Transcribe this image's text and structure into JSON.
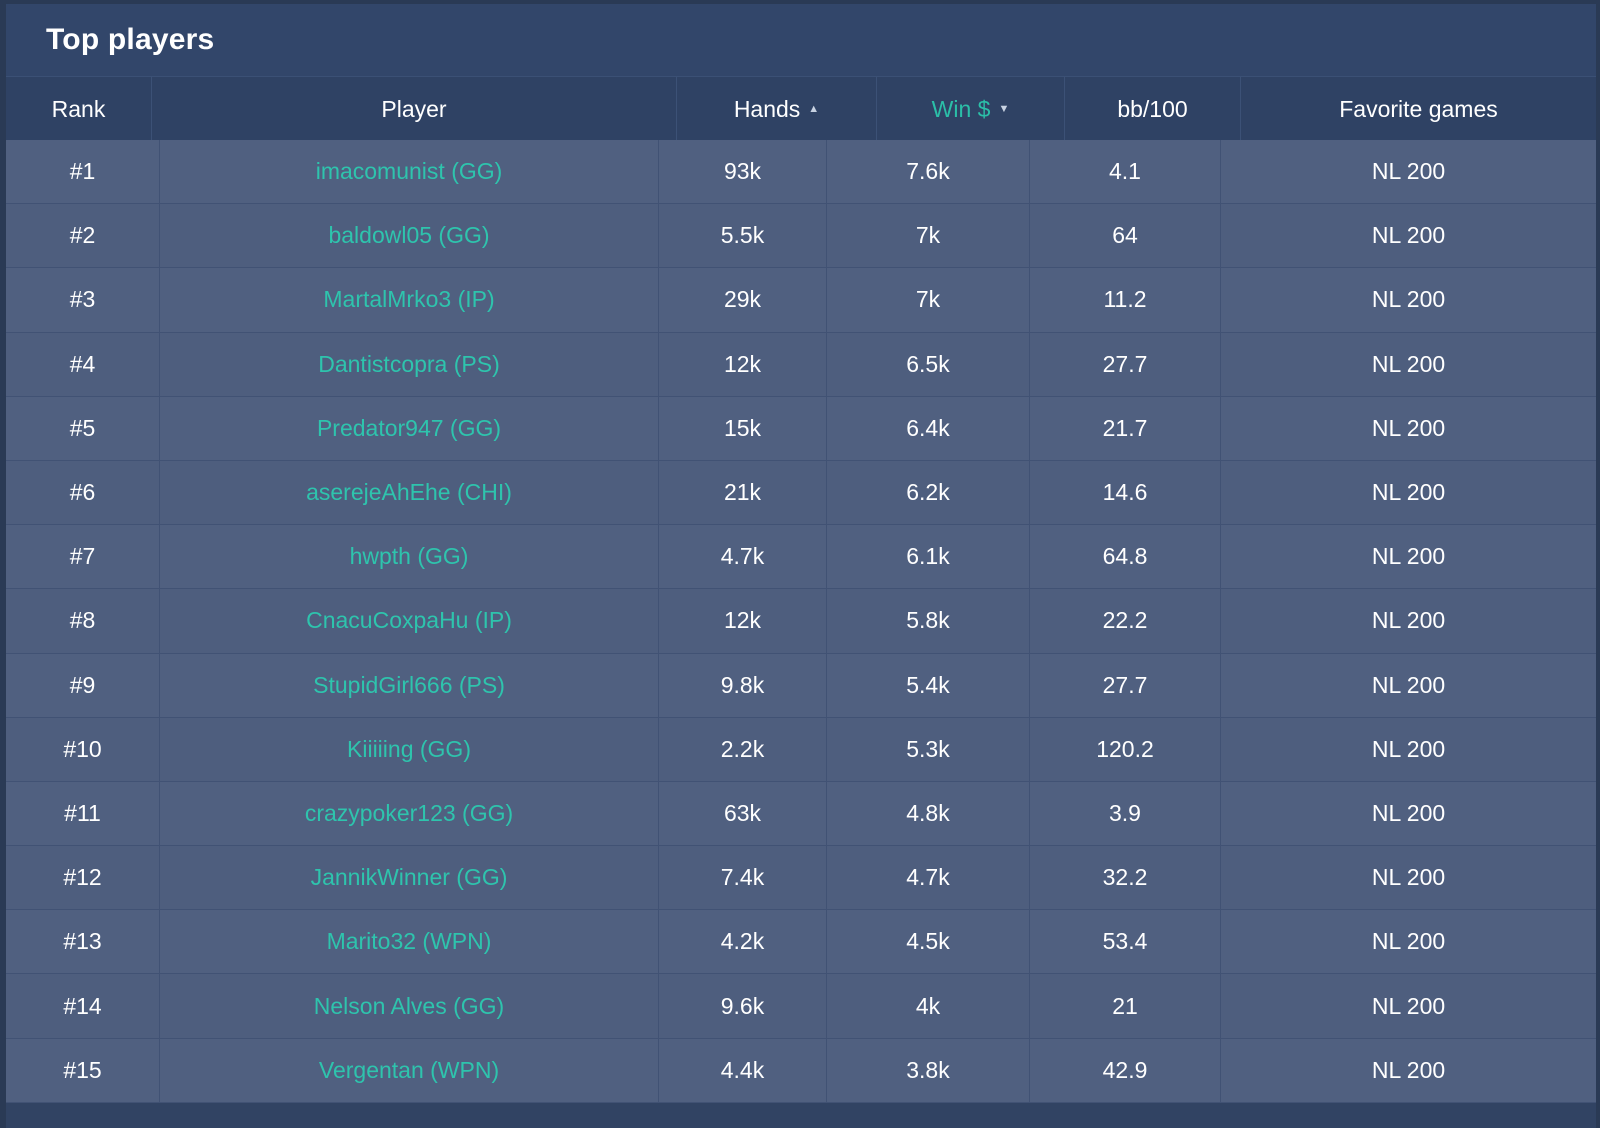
{
  "title": "Top players",
  "columns": {
    "rank": "Rank",
    "player": "Player",
    "hands": "Hands",
    "win": "Win $",
    "bb100": "bb/100",
    "favorite": "Favorite games"
  },
  "sort": {
    "hands_icon": "▲",
    "win_icon": "▼",
    "active_column": "win",
    "active_color": "#2bbfa8"
  },
  "colors": {
    "player_link": "#2ec4ad",
    "panel": "#314363",
    "row": "#506080"
  },
  "rows": [
    {
      "rank": "#1",
      "player": "imacomunist (GG)",
      "hands": "93k",
      "win": "7.6k",
      "bb100": "4.1",
      "favorite": "NL 200"
    },
    {
      "rank": "#2",
      "player": "baldowl05 (GG)",
      "hands": "5.5k",
      "win": "7k",
      "bb100": "64",
      "favorite": "NL 200"
    },
    {
      "rank": "#3",
      "player": "MartalMrko3 (IP)",
      "hands": "29k",
      "win": "7k",
      "bb100": "11.2",
      "favorite": "NL 200"
    },
    {
      "rank": "#4",
      "player": "Dantistcopra (PS)",
      "hands": "12k",
      "win": "6.5k",
      "bb100": "27.7",
      "favorite": "NL 200"
    },
    {
      "rank": "#5",
      "player": "Predator947 (GG)",
      "hands": "15k",
      "win": "6.4k",
      "bb100": "21.7",
      "favorite": "NL 200"
    },
    {
      "rank": "#6",
      "player": "aserejeAhEhe (CHI)",
      "hands": "21k",
      "win": "6.2k",
      "bb100": "14.6",
      "favorite": "NL 200"
    },
    {
      "rank": "#7",
      "player": "hwpth (GG)",
      "hands": "4.7k",
      "win": "6.1k",
      "bb100": "64.8",
      "favorite": "NL 200"
    },
    {
      "rank": "#8",
      "player": "CnacuCoxpaHu (IP)",
      "hands": "12k",
      "win": "5.8k",
      "bb100": "22.2",
      "favorite": "NL 200"
    },
    {
      "rank": "#9",
      "player": "StupidGirl666 (PS)",
      "hands": "9.8k",
      "win": "5.4k",
      "bb100": "27.7",
      "favorite": "NL 200"
    },
    {
      "rank": "#10",
      "player": "Kiiiiing (GG)",
      "hands": "2.2k",
      "win": "5.3k",
      "bb100": "120.2",
      "favorite": "NL 200"
    },
    {
      "rank": "#11",
      "player": "crazypoker123 (GG)",
      "hands": "63k",
      "win": "4.8k",
      "bb100": "3.9",
      "favorite": "NL 200"
    },
    {
      "rank": "#12",
      "player": "JannikWinner (GG)",
      "hands": "7.4k",
      "win": "4.7k",
      "bb100": "32.2",
      "favorite": "NL 200"
    },
    {
      "rank": "#13",
      "player": "Marito32 (WPN)",
      "hands": "4.2k",
      "win": "4.5k",
      "bb100": "53.4",
      "favorite": "NL 200"
    },
    {
      "rank": "#14",
      "player": "Nelson Alves (GG)",
      "hands": "9.6k",
      "win": "4k",
      "bb100": "21",
      "favorite": "NL 200"
    },
    {
      "rank": "#15",
      "player": "Vergentan (WPN)",
      "hands": "4.4k",
      "win": "3.8k",
      "bb100": "42.9",
      "favorite": "NL 200"
    }
  ]
}
